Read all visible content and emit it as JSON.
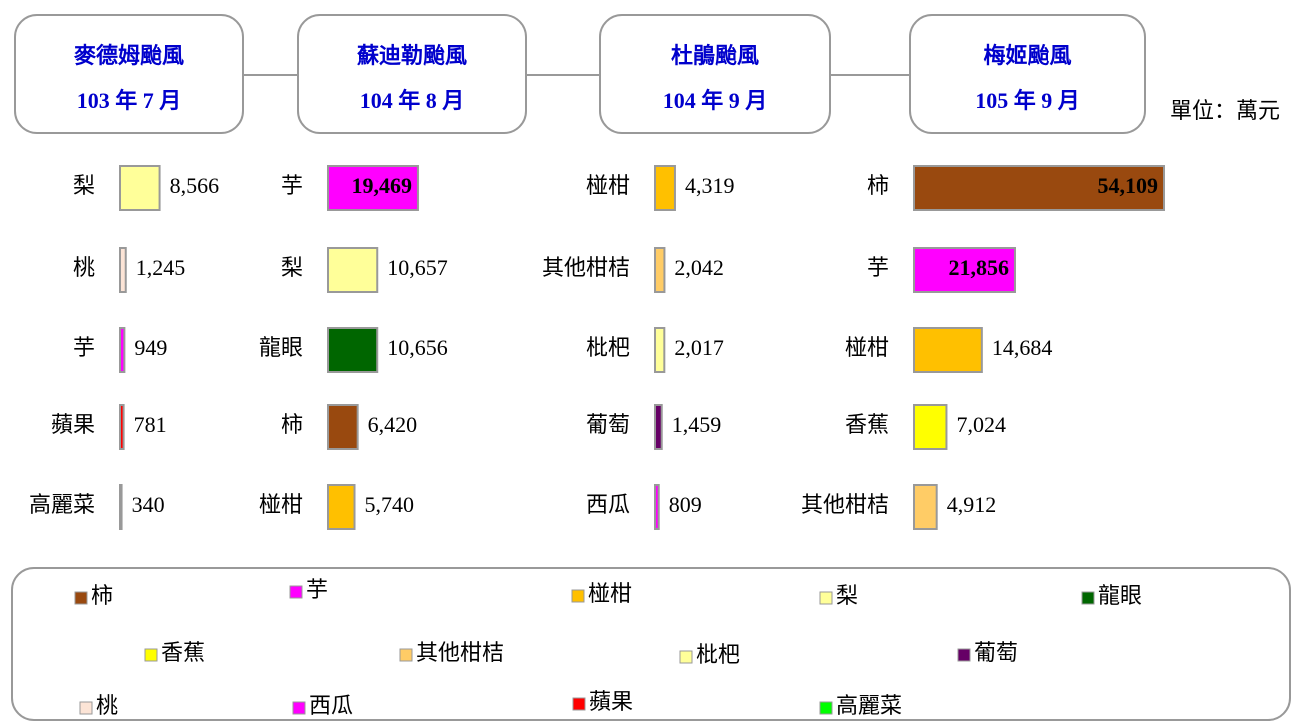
{
  "unit": "單位：萬元",
  "chart_data": [
    {
      "type": "bar",
      "title": "麥德姆颱風",
      "subtitle": "103 年 7 月",
      "categories": [
        "梨",
        "桃",
        "芋",
        "蘋果",
        "高麗菜"
      ],
      "values": [
        8566,
        1245,
        949,
        781,
        340
      ],
      "value_labels": [
        "8,566",
        "1,245",
        "949",
        "781",
        "340"
      ]
    },
    {
      "type": "bar",
      "title": "蘇迪勒颱風",
      "subtitle": "104 年 8 月",
      "categories": [
        "芋",
        "梨",
        "龍眼",
        "柿",
        "椪柑"
      ],
      "values": [
        19469,
        10657,
        10656,
        6420,
        5740
      ],
      "value_labels": [
        "19,469",
        "10,657",
        "10,656",
        "6,420",
        "5,740"
      ]
    },
    {
      "type": "bar",
      "title": "杜鵑颱風",
      "subtitle": "104 年 9 月",
      "categories": [
        "椪柑",
        "其他柑桔",
        "枇杷",
        "葡萄",
        "西瓜"
      ],
      "values": [
        4319,
        2042,
        2017,
        1459,
        809
      ],
      "value_labels": [
        "4,319",
        "2,042",
        "2,017",
        "1,459",
        "809"
      ]
    },
    {
      "type": "bar",
      "title": "梅姬颱風",
      "subtitle": "105 年 9 月",
      "categories": [
        "柿",
        "芋",
        "椪柑",
        "香蕉",
        "其他柑桔"
      ],
      "values": [
        54109,
        21856,
        14684,
        7024,
        4912
      ],
      "value_labels": [
        "54,109",
        "21,856",
        "14,684",
        "7,024",
        "4,912"
      ]
    }
  ],
  "legend": [
    {
      "name": "柿",
      "color": "#99490f"
    },
    {
      "name": "芋",
      "color": "#ff00ff"
    },
    {
      "name": "椪柑",
      "color": "#ffc000"
    },
    {
      "name": "梨",
      "color": "#ffff99"
    },
    {
      "name": "龍眼",
      "color": "#006600"
    },
    {
      "name": "香蕉",
      "color": "#ffff00"
    },
    {
      "name": "其他柑桔",
      "color": "#ffcc66"
    },
    {
      "name": "枇杷",
      "color": "#ffff99"
    },
    {
      "name": "葡萄",
      "color": "#660066"
    },
    {
      "name": "桃",
      "color": "#fce4d6"
    },
    {
      "name": "西瓜",
      "color": "#ff00ff"
    },
    {
      "name": "蘋果",
      "color": "#ff0000"
    },
    {
      "name": "高麗菜",
      "color": "#00ff00"
    }
  ]
}
